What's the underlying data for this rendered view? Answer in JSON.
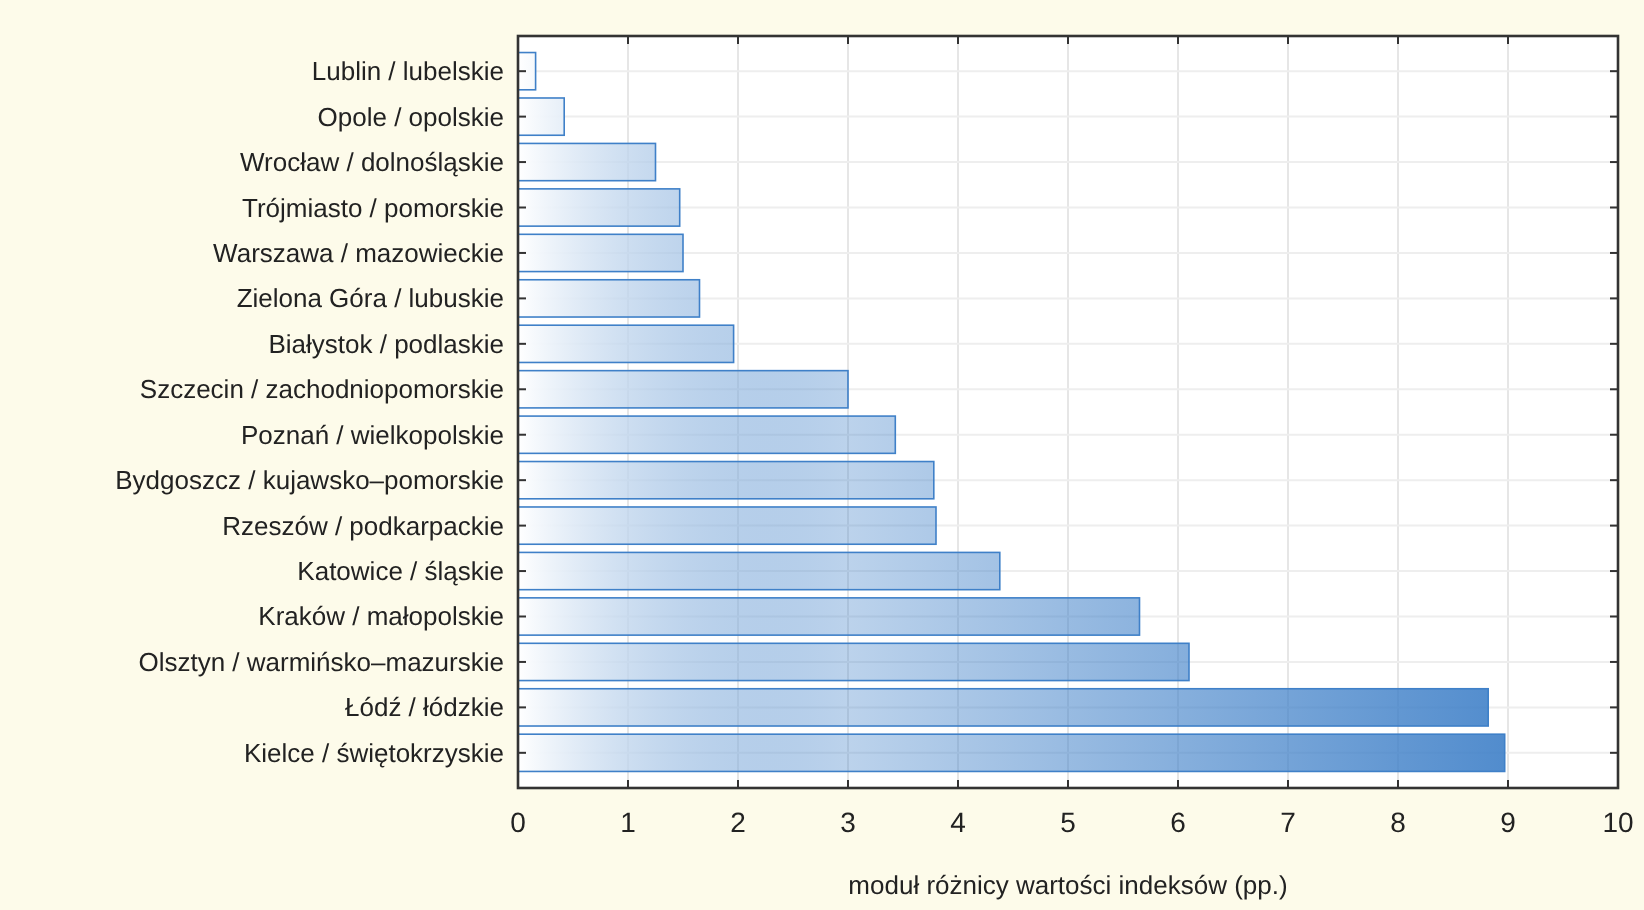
{
  "chart_data": {
    "type": "bar",
    "orientation": "horizontal",
    "xlabel": "moduł różnicy wartości indeksów (pp.)",
    "categories": [
      "Lublin / lubelskie",
      "Opole / opolskie",
      "Wrocław / dolnośląskie",
      "Trójmiasto / pomorskie",
      "Warszawa / mazowieckie",
      "Zielona Góra / lubuskie",
      "Białystok / podlaskie",
      "Szczecin / zachodniopomorskie",
      "Poznań / wielkopolskie",
      "Bydgoszcz / kujawsko–pomorskie",
      "Rzeszów / podkarpackie",
      "Katowice / śląskie",
      "Kraków / małopolskie",
      "Olsztyn / warmińsko–mazurskie",
      "Łódź / łódzkie",
      "Kielce / świętokrzyskie"
    ],
    "values": [
      0.16,
      0.42,
      1.25,
      1.47,
      1.5,
      1.65,
      1.96,
      3.0,
      3.43,
      3.78,
      3.8,
      4.38,
      5.65,
      6.1,
      8.82,
      8.97
    ],
    "color": "#3f80c8",
    "xlim": [
      0,
      10
    ],
    "xticks": [
      0,
      1,
      2,
      3,
      4,
      5,
      6,
      7,
      8,
      9,
      10
    ],
    "grid": true
  }
}
